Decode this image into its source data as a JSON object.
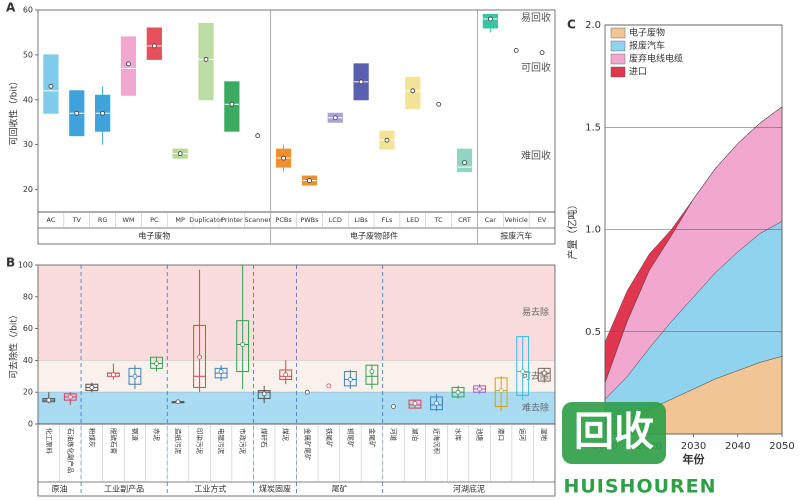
{
  "chart_data": [
    {
      "type": "box",
      "panel": "A",
      "y_label": "可回收性（/bit）",
      "ylim": [
        15,
        60
      ],
      "yticks": [
        20,
        30,
        40,
        50,
        60
      ],
      "annotations": [
        "易回收",
        "可回收",
        "难回收"
      ],
      "groups": [
        {
          "name": "电子废物",
          "categories": [
            "AC",
            "TV",
            "RG",
            "WM",
            "PC",
            "MP",
            "Duplicator",
            "Printer",
            "Scanner"
          ],
          "boxes": [
            {
              "low": 37,
              "q1": 37,
              "median": 42,
              "q3": 50,
              "high": 50,
              "mean": 43,
              "color": "#7ecbec"
            },
            {
              "low": 32,
              "q1": 32,
              "median": 37,
              "q3": 42,
              "high": 42,
              "mean": 37,
              "color": "#3fa2db"
            },
            {
              "low": 30,
              "q1": 33,
              "median": 37,
              "q3": 41,
              "high": 43,
              "mean": 37,
              "color": "#3fa2db"
            },
            {
              "low": 41,
              "q1": 41,
              "median": 47,
              "q3": 54,
              "high": 54,
              "mean": 48,
              "color": "#f2a7cf"
            },
            {
              "low": 49,
              "q1": 49,
              "median": 52,
              "q3": 56,
              "high": 56,
              "mean": 52,
              "color": "#e5505d"
            },
            {
              "low": 27,
              "q1": 27,
              "median": 28,
              "q3": 29,
              "high": 29,
              "mean": 28,
              "color": "#b6d994"
            },
            {
              "low": 40,
              "q1": 40,
              "median": 49,
              "q3": 57,
              "high": 57,
              "mean": 49,
              "color": "#bcdca3"
            },
            {
              "low": 33,
              "q1": 33,
              "median": 39,
              "q3": 44,
              "high": 44,
              "mean": 39,
              "color": "#3bab5f"
            },
            {
              "mean": 32,
              "color": "#888888"
            }
          ]
        },
        {
          "name": "电子废物部件",
          "categories": [
            "PCBs",
            "PWBs",
            "LCD",
            "LIBs",
            "FLs",
            "LED",
            "TC",
            "CRT"
          ],
          "boxes": [
            {
              "low": 24,
              "q1": 25,
              "median": 27,
              "q3": 29,
              "high": 30,
              "mean": 27,
              "color": "#ef8f2e"
            },
            {
              "low": 21,
              "q1": 21,
              "median": 22,
              "q3": 23,
              "high": 23,
              "mean": 22,
              "color": "#ef8f2e"
            },
            {
              "low": 35,
              "q1": 35,
              "median": 36,
              "q3": 37,
              "high": 37,
              "mean": 36,
              "color": "#a9a3d3"
            },
            {
              "low": 40,
              "q1": 40,
              "median": 44,
              "q3": 48,
              "high": 48,
              "mean": 44,
              "color": "#5a5fb0"
            },
            {
              "low": 29,
              "q1": 29,
              "median": 31,
              "q3": 33,
              "high": 33,
              "mean": 31,
              "color": "#f3e397"
            },
            {
              "low": 38,
              "q1": 38,
              "median": 42,
              "q3": 45,
              "high": 45,
              "mean": 42,
              "color": "#f3e397"
            },
            {
              "mean": 39,
              "color": "#888888"
            },
            {
              "low": 24,
              "q1": 24,
              "median": 25,
              "q3": 29,
              "high": 29,
              "mean": 26,
              "color": "#93d3c3"
            }
          ]
        },
        {
          "name": "报废汽车",
          "categories": [
            "Car",
            "Vehicle",
            "EV"
          ],
          "boxes": [
            {
              "low": 55,
              "q1": 56,
              "median": 58,
              "q3": 59,
              "high": 59,
              "mean": 58,
              "color": "#3cc3a3"
            },
            {
              "mean": 51,
              "color": "#ef8f2e"
            },
            {
              "mean": 50.5,
              "color": "#888888"
            }
          ]
        }
      ]
    },
    {
      "type": "box",
      "panel": "B",
      "y_label": "可去除性（/bit）",
      "ylim": [
        0,
        100
      ],
      "yticks": [
        0,
        20,
        40,
        60,
        80,
        100
      ],
      "bands": [
        {
          "from": 40,
          "to": 100,
          "color": "#fadcdc",
          "label": "易去除"
        },
        {
          "from": 20,
          "to": 40,
          "color": "#fbf1ec",
          "label": "可去除"
        },
        {
          "from": 0,
          "to": 20,
          "color": "#a9dcf3",
          "label": "难去除"
        }
      ],
      "groups": [
        {
          "name": "原油",
          "categories": [
            "化工原料",
            "石油炼化副产品"
          ],
          "boxes": [
            {
              "low": 13,
              "q1": 14,
              "median": 15,
              "q3": 16,
              "high": 20,
              "mean": 15,
              "color": "#555555"
            },
            {
              "low": 12,
              "q1": 15,
              "median": 17,
              "q3": 19,
              "high": 20,
              "mean": 17,
              "color": "#e04050"
            }
          ]
        },
        {
          "name": "工业副产品",
          "categories": [
            "粉煤灰",
            "脱硫石膏",
            "钢渣",
            "赤泥"
          ],
          "boxes": [
            {
              "low": 20,
              "q1": 21,
              "median": 23,
              "q3": 25,
              "high": 26,
              "mean": 23,
              "color": "#555555"
            },
            {
              "low": 28,
              "q1": 30,
              "median": 32,
              "q3": 32,
              "high": 38,
              "mean": 31,
              "color": "#e04050"
            },
            {
              "low": 22,
              "q1": 25,
              "median": 30,
              "q3": 35,
              "high": 37,
              "mean": 30,
              "color": "#3a80c0"
            },
            {
              "low": 33,
              "q1": 35,
              "median": 38,
              "q3": 42,
              "high": 42,
              "mean": 38,
              "color": "#30a050"
            }
          ]
        },
        {
          "name": "工业方式",
          "categories": [
            "造纸污泥",
            "印染污泥",
            "电镀污泥",
            "市政污泥"
          ],
          "boxes": [
            {
              "low": 14,
              "q1": 14,
              "median": 14,
              "q3": 14,
              "high": 14,
              "mean": 14,
              "color": "#555555"
            },
            {
              "low": 20,
              "q1": 23,
              "median": 30,
              "q3": 62,
              "high": 97,
              "mean": 42,
              "color": "#e04050"
            },
            {
              "low": 27,
              "q1": 29,
              "median": 32,
              "q3": 35,
              "high": 37,
              "mean": 33,
              "color": "#3a80c0"
            },
            {
              "low": 22,
              "q1": 33,
              "median": 50,
              "q3": 65,
              "high": 100,
              "mean": 50,
              "color": "#30a050"
            }
          ]
        },
        {
          "name": "煤炭固废",
          "categories": [
            "煤矸石",
            "煤泥"
          ],
          "boxes": [
            {
              "low": 13,
              "q1": 16,
              "median": 20,
              "q3": 21,
              "high": 24,
              "mean": 19,
              "color": "#555555"
            },
            {
              "low": 25,
              "q1": 28,
              "median": 30,
              "q3": 34,
              "high": 40,
              "mean": 31,
              "color": "#e04050"
            }
          ]
        },
        {
          "name": "尾矿",
          "categories": [
            "金属矿尾矿",
            "铁尾矿",
            "铜尾矿",
            "金尾矿"
          ],
          "boxes": [
            {
              "mean": 20,
              "color": "#555555"
            },
            {
              "mean": 24,
              "color": "#e04050"
            },
            {
              "low": 22,
              "q1": 24,
              "median": 28,
              "q3": 33,
              "high": 34,
              "mean": 28,
              "color": "#3a80c0"
            },
            {
              "low": 22,
              "q1": 25,
              "median": 30,
              "q3": 37,
              "high": 37,
              "mean": 33,
              "color": "#30a050"
            }
          ]
        },
        {
          "name": "河湖底泥",
          "categories": [
            "河道",
            "湖泊",
            "近海沉积",
            "水库",
            "池塘",
            "港口",
            "运河",
            "湿地"
          ],
          "boxes": [
            {
              "mean": 11,
              "color": "#555555"
            },
            {
              "low": 10,
              "q1": 10,
              "median": 12,
              "q3": 15,
              "high": 15,
              "mean": 13,
              "color": "#e04050"
            },
            {
              "low": 8,
              "q1": 9,
              "median": 12,
              "q3": 17,
              "high": 19,
              "mean": 13,
              "color": "#3a80c0"
            },
            {
              "low": 16,
              "q1": 17,
              "median": 20,
              "q3": 23,
              "high": 24,
              "mean": 20,
              "color": "#30a050"
            },
            {
              "low": 19,
              "q1": 20,
              "median": 22,
              "q3": 24,
              "high": 25,
              "mean": 22,
              "color": "#a060c0"
            },
            {
              "low": 8,
              "q1": 11,
              "median": 21,
              "q3": 29,
              "high": 30,
              "mean": 21,
              "color": "#d0a020"
            },
            {
              "low": 15,
              "q1": 18,
              "median": 33,
              "q3": 55,
              "high": 55,
              "mean": 33,
              "color": "#30c0e0"
            },
            {
              "low": 26,
              "q1": 27,
              "median": 32,
              "q3": 35,
              "high": 35,
              "mean": 32,
              "color": "#806060"
            }
          ]
        }
      ]
    },
    {
      "type": "stacked-area",
      "panel": "C",
      "y_label": "产量（亿吨）",
      "x_label": "年份",
      "x": [
        2010,
        2015,
        2020,
        2025,
        2030,
        2035,
        2040,
        2045,
        2050
      ],
      "xlim": [
        2010,
        2050
      ],
      "xticks": [
        2010,
        2020,
        2030,
        2040,
        2050
      ],
      "ylim": [
        0,
        2
      ],
      "yticks": [
        0.5,
        {
          "value": 1,
          "label": "1.0"
        },
        1.5,
        {
          "value": 2,
          "label": "2.0"
        }
      ],
      "grid": true,
      "series": [
        {
          "name": "电子废物",
          "color": "#f2c594",
          "values": [
            0.05,
            0.08,
            0.12,
            0.17,
            0.22,
            0.27,
            0.31,
            0.35,
            0.38
          ]
        },
        {
          "name": "报废汽车",
          "color": "#8fd3ef",
          "values": [
            0.12,
            0.2,
            0.3,
            0.38,
            0.45,
            0.52,
            0.58,
            0.63,
            0.66
          ]
        },
        {
          "name": "废弃电线电缆",
          "color": "#f2a7cf",
          "values": [
            0.08,
            0.27,
            0.38,
            0.42,
            0.48,
            0.51,
            0.53,
            0.54,
            0.56
          ]
        },
        {
          "name": "进口",
          "color": "#e0364f",
          "values": [
            0.2,
            0.15,
            0.08,
            0.03,
            0,
            0,
            0,
            0,
            0
          ]
        }
      ]
    }
  ],
  "watermark": {
    "logo": "回收",
    "text": "HUISHOUREN"
  }
}
